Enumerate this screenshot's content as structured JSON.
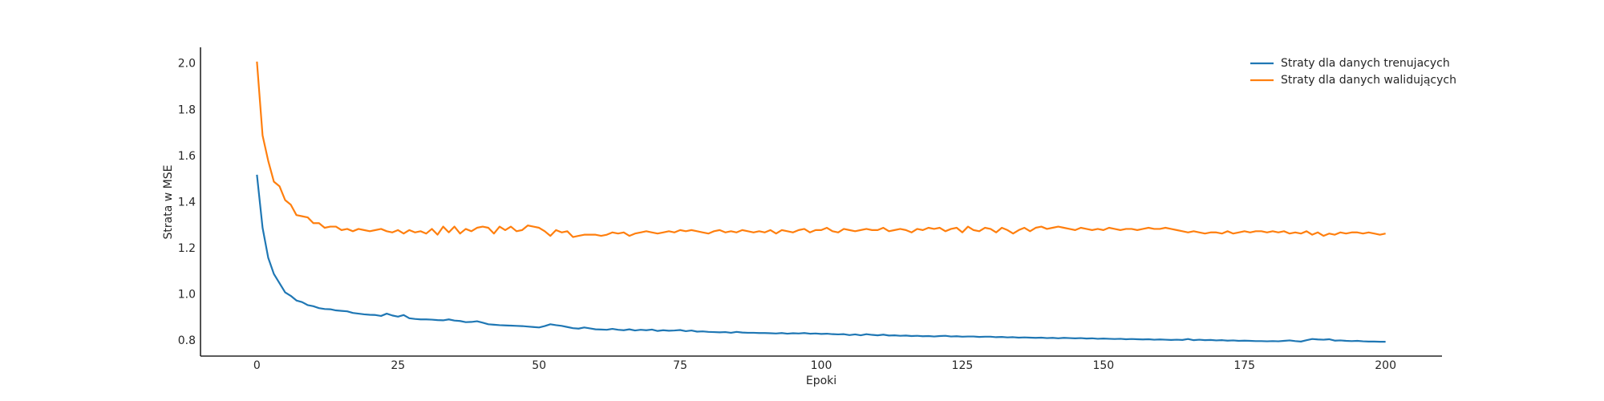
{
  "chart_data": {
    "type": "line",
    "xlabel": "Epoki",
    "ylabel": "Strata w MSE",
    "x": [
      0,
      1,
      2,
      3,
      4,
      5,
      6,
      7,
      8,
      9,
      10,
      11,
      12,
      13,
      14,
      15,
      16,
      17,
      18,
      19,
      20,
      21,
      22,
      23,
      24,
      25,
      26,
      27,
      28,
      29,
      30,
      31,
      32,
      33,
      34,
      35,
      36,
      37,
      38,
      39,
      40,
      41,
      42,
      43,
      44,
      45,
      46,
      47,
      48,
      49,
      50,
      51,
      52,
      53,
      54,
      55,
      56,
      57,
      58,
      59,
      60,
      61,
      62,
      63,
      64,
      65,
      66,
      67,
      68,
      69,
      70,
      71,
      72,
      73,
      74,
      75,
      76,
      77,
      78,
      79,
      80,
      81,
      82,
      83,
      84,
      85,
      86,
      87,
      88,
      89,
      90,
      91,
      92,
      93,
      94,
      95,
      96,
      97,
      98,
      99,
      100,
      101,
      102,
      103,
      104,
      105,
      106,
      107,
      108,
      109,
      110,
      111,
      112,
      113,
      114,
      115,
      116,
      117,
      118,
      119,
      120,
      121,
      122,
      123,
      124,
      125,
      126,
      127,
      128,
      129,
      130,
      131,
      132,
      133,
      134,
      135,
      136,
      137,
      138,
      139,
      140,
      141,
      142,
      143,
      144,
      145,
      146,
      147,
      148,
      149,
      150,
      151,
      152,
      153,
      154,
      155,
      156,
      157,
      158,
      159,
      160,
      161,
      162,
      163,
      164,
      165,
      166,
      167,
      168,
      169,
      170,
      171,
      172,
      173,
      174,
      175,
      176,
      177,
      178,
      179,
      180,
      181,
      182,
      183,
      184,
      185,
      186,
      187,
      188,
      189,
      190,
      191,
      192,
      193,
      194,
      195,
      196,
      197,
      198,
      199,
      200
    ],
    "series": [
      {
        "name": "Straty dla danych trenujacych",
        "color": "#1f77b4",
        "values": [
          1.52,
          1.29,
          1.16,
          1.09,
          1.05,
          1.01,
          0.995,
          0.975,
          0.968,
          0.955,
          0.95,
          0.942,
          0.938,
          0.937,
          0.932,
          0.93,
          0.928,
          0.921,
          0.918,
          0.915,
          0.913,
          0.912,
          0.908,
          0.918,
          0.91,
          0.905,
          0.912,
          0.898,
          0.895,
          0.893,
          0.893,
          0.892,
          0.89,
          0.889,
          0.893,
          0.888,
          0.886,
          0.881,
          0.882,
          0.885,
          0.879,
          0.872,
          0.87,
          0.868,
          0.867,
          0.866,
          0.865,
          0.864,
          0.862,
          0.86,
          0.858,
          0.864,
          0.872,
          0.868,
          0.865,
          0.86,
          0.855,
          0.853,
          0.858,
          0.854,
          0.85,
          0.849,
          0.848,
          0.852,
          0.848,
          0.846,
          0.85,
          0.845,
          0.848,
          0.846,
          0.849,
          0.843,
          0.846,
          0.844,
          0.845,
          0.847,
          0.842,
          0.845,
          0.84,
          0.841,
          0.839,
          0.838,
          0.837,
          0.838,
          0.835,
          0.839,
          0.836,
          0.835,
          0.835,
          0.834,
          0.834,
          0.833,
          0.832,
          0.834,
          0.831,
          0.833,
          0.832,
          0.834,
          0.831,
          0.832,
          0.83,
          0.831,
          0.829,
          0.828,
          0.829,
          0.825,
          0.828,
          0.824,
          0.829,
          0.826,
          0.824,
          0.827,
          0.823,
          0.824,
          0.822,
          0.823,
          0.821,
          0.822,
          0.82,
          0.821,
          0.819,
          0.821,
          0.822,
          0.819,
          0.82,
          0.818,
          0.819,
          0.819,
          0.817,
          0.818,
          0.818,
          0.816,
          0.817,
          0.815,
          0.816,
          0.814,
          0.815,
          0.814,
          0.813,
          0.814,
          0.812,
          0.813,
          0.811,
          0.813,
          0.812,
          0.811,
          0.812,
          0.81,
          0.811,
          0.809,
          0.81,
          0.809,
          0.808,
          0.809,
          0.807,
          0.808,
          0.807,
          0.806,
          0.807,
          0.805,
          0.806,
          0.805,
          0.804,
          0.805,
          0.804,
          0.808,
          0.803,
          0.805,
          0.803,
          0.804,
          0.802,
          0.803,
          0.801,
          0.802,
          0.8,
          0.801,
          0.8,
          0.799,
          0.799,
          0.798,
          0.799,
          0.798,
          0.8,
          0.802,
          0.799,
          0.797,
          0.803,
          0.808,
          0.806,
          0.805,
          0.807,
          0.801,
          0.802,
          0.8,
          0.799,
          0.8,
          0.798,
          0.797,
          0.797,
          0.796,
          0.796
        ]
      },
      {
        "name": "Straty dla danych walidujących",
        "color": "#ff7f0e",
        "values": [
          2.01,
          1.69,
          1.58,
          1.49,
          1.47,
          1.41,
          1.39,
          1.345,
          1.34,
          1.335,
          1.31,
          1.31,
          1.29,
          1.295,
          1.295,
          1.28,
          1.285,
          1.275,
          1.285,
          1.28,
          1.275,
          1.28,
          1.285,
          1.275,
          1.27,
          1.28,
          1.265,
          1.28,
          1.27,
          1.275,
          1.265,
          1.285,
          1.26,
          1.295,
          1.27,
          1.295,
          1.265,
          1.285,
          1.275,
          1.29,
          1.295,
          1.29,
          1.265,
          1.295,
          1.28,
          1.295,
          1.275,
          1.28,
          1.3,
          1.295,
          1.29,
          1.275,
          1.255,
          1.28,
          1.27,
          1.275,
          1.25,
          1.255,
          1.26,
          1.26,
          1.26,
          1.255,
          1.26,
          1.27,
          1.265,
          1.27,
          1.255,
          1.265,
          1.27,
          1.275,
          1.27,
          1.265,
          1.27,
          1.275,
          1.27,
          1.28,
          1.275,
          1.28,
          1.275,
          1.27,
          1.265,
          1.275,
          1.28,
          1.27,
          1.275,
          1.27,
          1.28,
          1.275,
          1.27,
          1.275,
          1.27,
          1.28,
          1.265,
          1.28,
          1.275,
          1.27,
          1.28,
          1.285,
          1.27,
          1.28,
          1.28,
          1.29,
          1.275,
          1.27,
          1.285,
          1.28,
          1.275,
          1.28,
          1.285,
          1.28,
          1.28,
          1.29,
          1.275,
          1.28,
          1.285,
          1.28,
          1.27,
          1.285,
          1.28,
          1.29,
          1.285,
          1.29,
          1.275,
          1.285,
          1.29,
          1.27,
          1.295,
          1.28,
          1.275,
          1.29,
          1.285,
          1.27,
          1.29,
          1.28,
          1.265,
          1.28,
          1.29,
          1.275,
          1.29,
          1.295,
          1.285,
          1.29,
          1.295,
          1.29,
          1.285,
          1.28,
          1.29,
          1.285,
          1.28,
          1.285,
          1.28,
          1.29,
          1.285,
          1.28,
          1.285,
          1.285,
          1.28,
          1.285,
          1.29,
          1.285,
          1.285,
          1.29,
          1.285,
          1.28,
          1.275,
          1.27,
          1.275,
          1.27,
          1.265,
          1.27,
          1.27,
          1.265,
          1.275,
          1.265,
          1.27,
          1.275,
          1.27,
          1.275,
          1.275,
          1.27,
          1.275,
          1.27,
          1.275,
          1.265,
          1.27,
          1.265,
          1.275,
          1.26,
          1.27,
          1.255,
          1.265,
          1.26,
          1.27,
          1.265,
          1.27,
          1.27,
          1.265,
          1.27,
          1.265,
          1.26,
          1.265
        ]
      }
    ],
    "xlim": [
      -10,
      210
    ],
    "ylim": [
      0.734,
      2.072
    ],
    "xticks": [
      0,
      25,
      50,
      75,
      100,
      125,
      150,
      175,
      200
    ],
    "yticks": [
      0.8,
      {
        "value": 1,
        "label": "1.0"
      },
      1.2,
      1.4,
      1.6,
      1.8,
      {
        "value": 2,
        "label": "2.0"
      }
    ],
    "grid": false,
    "legend": "upper right"
  }
}
